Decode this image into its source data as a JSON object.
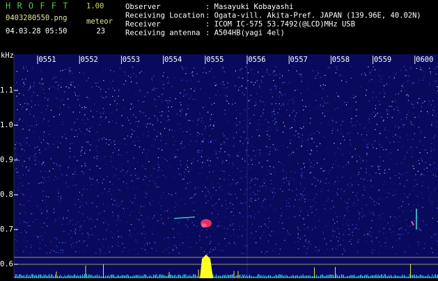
{
  "header": {
    "app_name": "H R O F F T",
    "version": "1.00",
    "filename": "0403280550.png",
    "datetime": "04.03.28 05:50",
    "meteor_label": "meteor",
    "meteor_count": "23"
  },
  "info": [
    [
      "Observer",
      ": Masayuki Kobayashi"
    ],
    [
      "Receiving Location",
      ": Ogata-vill. Akita-Pref. JAPAN (139.96E, 40.02N)"
    ],
    [
      "Receiver",
      ": ICOM IC-575 53.7492(@LCD)MHz USB"
    ],
    [
      "Receiving antenna",
      ": A504HB(yagi 4el)"
    ]
  ],
  "axis": {
    "unit": "kHz",
    "freq_labels": [
      "1.1",
      "1.0",
      "0.9",
      "0.8",
      "0.7",
      "0.6"
    ],
    "time_labels": [
      "0551",
      "0552",
      "0553",
      "0554",
      "0555",
      "0556",
      "0557",
      "0558",
      "0559",
      "0600"
    ]
  }
}
